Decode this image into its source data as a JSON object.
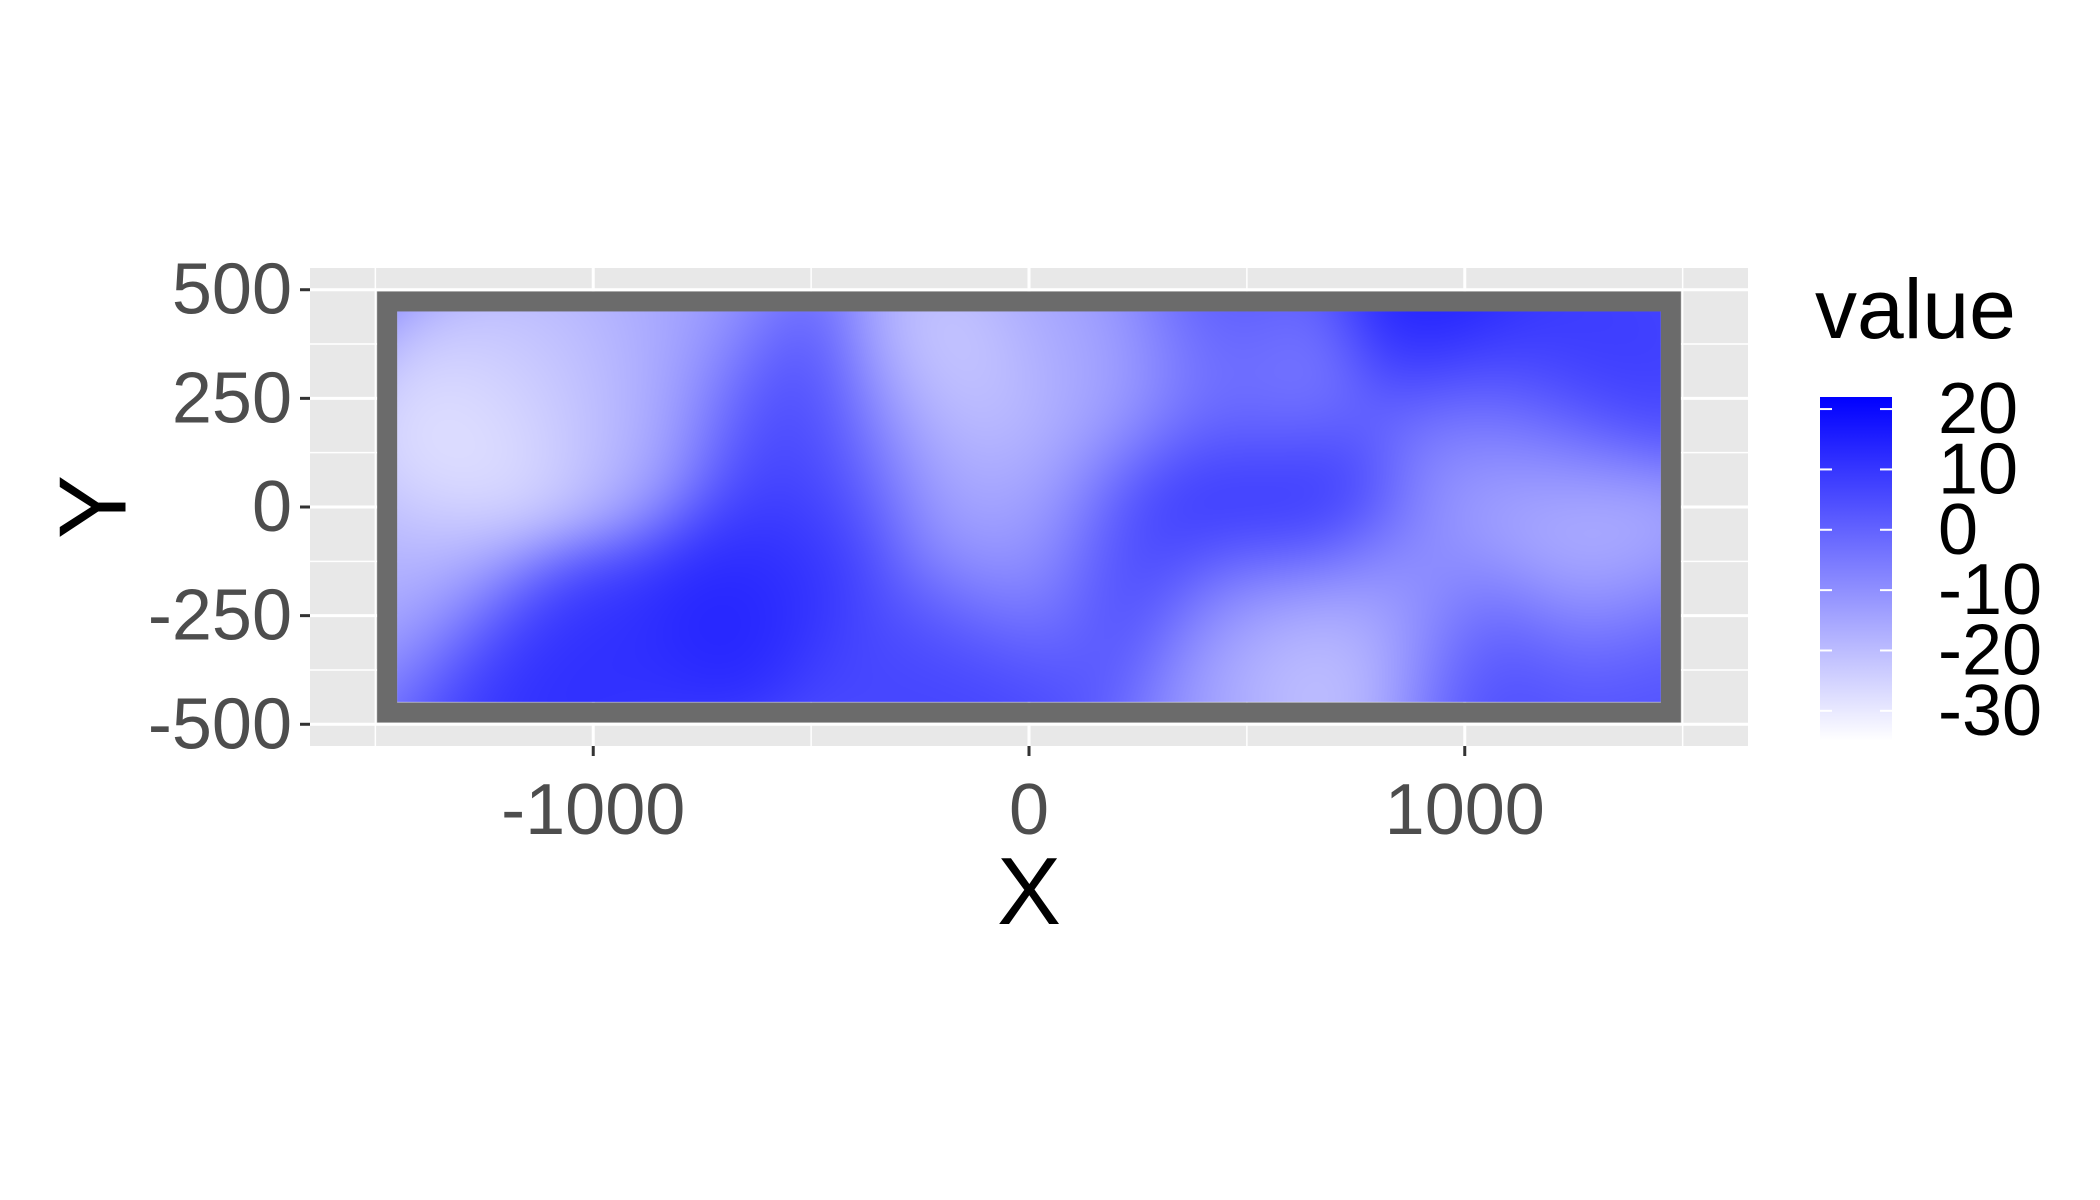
{
  "chart_data": {
    "type": "heatmap",
    "title": "",
    "xlabel": "X",
    "ylabel": "Y",
    "xlim": [
      -1650,
      1650
    ],
    "ylim": [
      -550,
      550
    ],
    "x_ticks": [
      -1000,
      0,
      1000
    ],
    "x_tick_labels": [
      "-1000",
      "0",
      "1000"
    ],
    "y_ticks": [
      500,
      250,
      0,
      -250,
      -500
    ],
    "y_tick_labels": [
      "500",
      "250",
      "0",
      "-250",
      "-500"
    ],
    "field_extent": {
      "x": [
        -1450,
        1450
      ],
      "y": [
        -450,
        450
      ]
    },
    "border_color": "#6b6b6b",
    "grid": true,
    "panel_background": "#e8e8e8",
    "colorscale": {
      "low": "#ffffff",
      "high": "#0000ff",
      "min": -35,
      "max": 22
    },
    "legend": {
      "title": "value",
      "position": "right",
      "ticks": [
        20,
        10,
        0,
        -10,
        -20,
        -30
      ],
      "tick_labels": [
        "20",
        "10",
        "0",
        "-10",
        "-20",
        "-30"
      ]
    },
    "baseline_value": -5,
    "features": [
      {
        "x": -1270,
        "y": 120,
        "value": -33
      },
      {
        "x": -1150,
        "y": 200,
        "value": -26
      },
      {
        "x": -1050,
        "y": 330,
        "value": -22
      },
      {
        "x": -1350,
        "y": -150,
        "value": -20
      },
      {
        "x": -900,
        "y": 150,
        "value": -18
      },
      {
        "x": -820,
        "y": 380,
        "value": -16
      },
      {
        "x": -1150,
        "y": -360,
        "value": 14
      },
      {
        "x": -1000,
        "y": -350,
        "value": 12
      },
      {
        "x": -700,
        "y": -220,
        "value": 17
      },
      {
        "x": -530,
        "y": -100,
        "value": 12
      },
      {
        "x": -600,
        "y": 200,
        "value": 8
      },
      {
        "x": -450,
        "y": 80,
        "value": 8
      },
      {
        "x": -300,
        "y": -350,
        "value": 7
      },
      {
        "x": -130,
        "y": -370,
        "value": 10
      },
      {
        "x": -170,
        "y": 280,
        "value": -28
      },
      {
        "x": -250,
        "y": 130,
        "value": -16
      },
      {
        "x": 0,
        "y": 0,
        "value": -18
      },
      {
        "x": -80,
        "y": -150,
        "value": -14
      },
      {
        "x": 100,
        "y": 350,
        "value": -15
      },
      {
        "x": 220,
        "y": -140,
        "value": 11
      },
      {
        "x": 250,
        "y": 280,
        "value": -20
      },
      {
        "x": 400,
        "y": 50,
        "value": 16
      },
      {
        "x": 430,
        "y": 380,
        "value": 10
      },
      {
        "x": 480,
        "y": -250,
        "value": -18
      },
      {
        "x": 560,
        "y": 260,
        "value": -14
      },
      {
        "x": 650,
        "y": 10,
        "value": 17
      },
      {
        "x": 720,
        "y": -320,
        "value": -26
      },
      {
        "x": 880,
        "y": -180,
        "value": -12
      },
      {
        "x": 930,
        "y": 420,
        "value": 19
      },
      {
        "x": 1000,
        "y": 150,
        "value": -10
      },
      {
        "x": 1060,
        "y": -350,
        "value": 8
      },
      {
        "x": 1150,
        "y": 50,
        "value": -20
      },
      {
        "x": 1200,
        "y": 280,
        "value": 12
      },
      {
        "x": 1300,
        "y": -150,
        "value": -20
      },
      {
        "x": 1380,
        "y": 380,
        "value": 9
      },
      {
        "x": 1400,
        "y": -380,
        "value": 6
      }
    ]
  }
}
